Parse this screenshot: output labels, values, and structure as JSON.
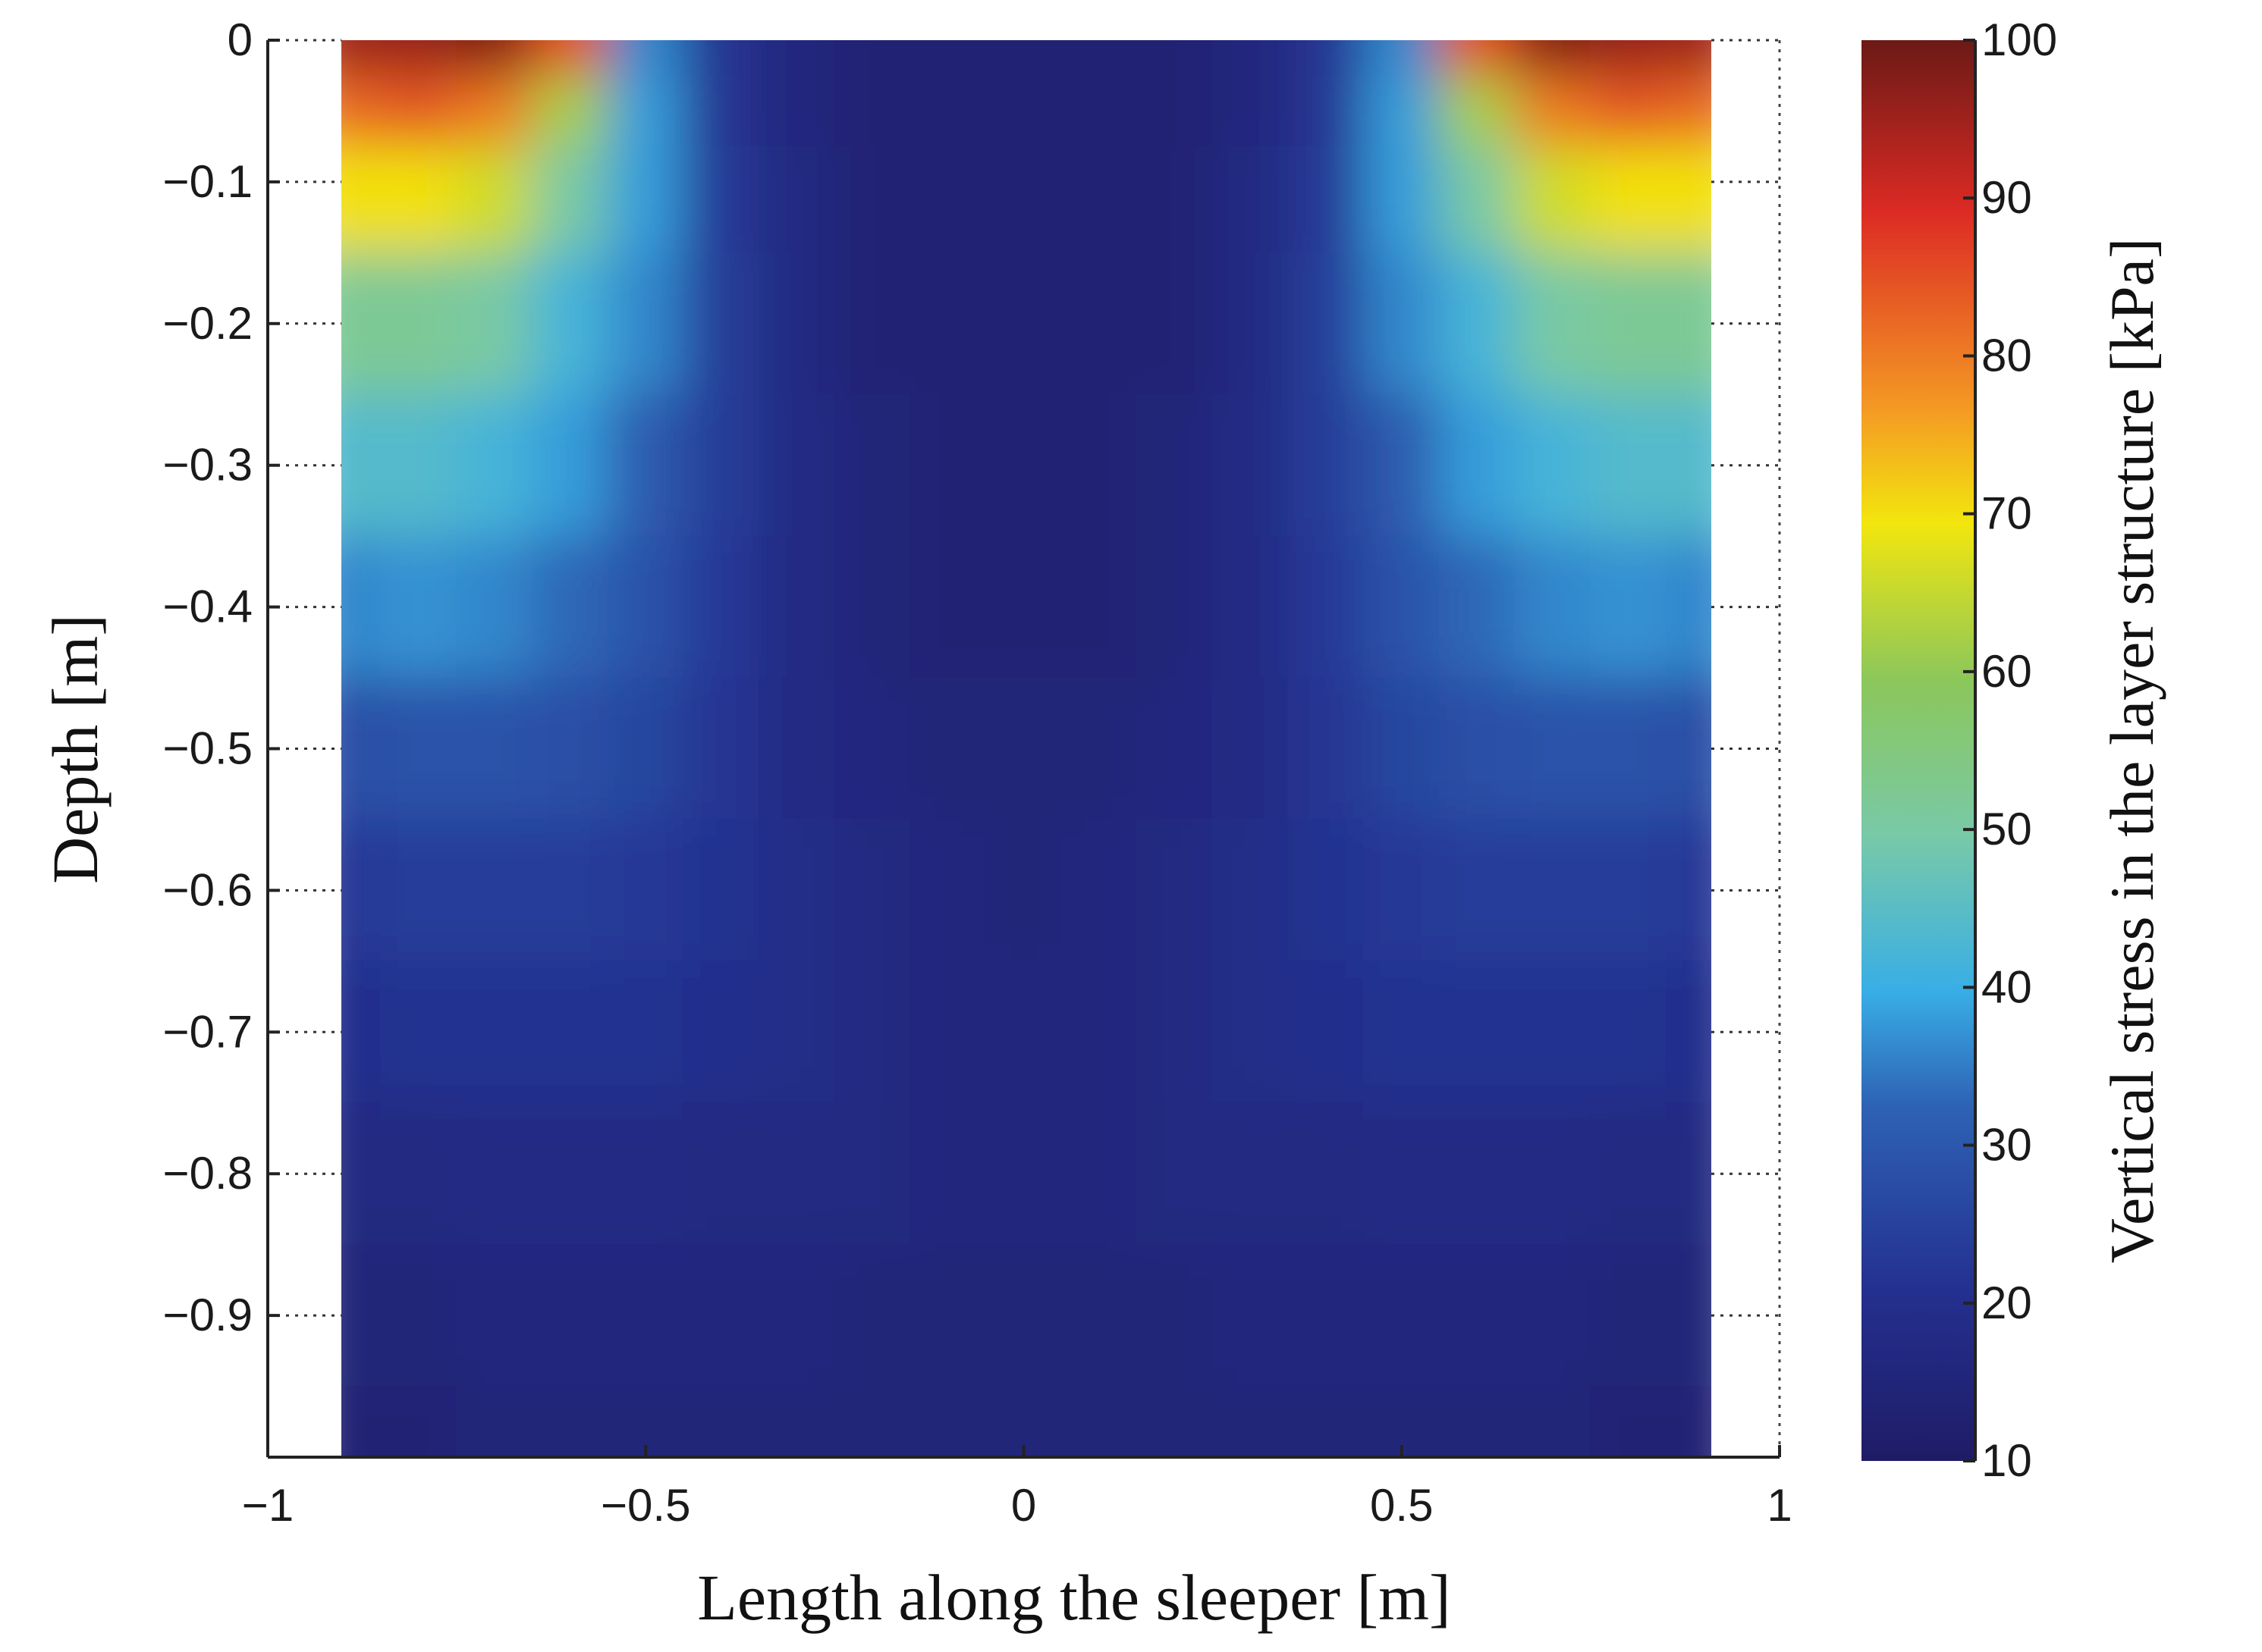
{
  "chart_data": {
    "type": "heatmap",
    "title": "",
    "xlabel": "Length along the sleeper [m]",
    "ylabel": "Depth [m]",
    "colorbar_label": "Vertical stress in the layer structure [kPa]",
    "xlim": [
      -1,
      1
    ],
    "ylim": [
      -1,
      0
    ],
    "data_x_extent": [
      -0.9,
      0.9
    ],
    "x_ticks": [
      {
        "value": -1,
        "label": "−1"
      },
      {
        "value": -0.5,
        "label": "−0.5"
      },
      {
        "value": 0,
        "label": "0"
      },
      {
        "value": 0.5,
        "label": "0.5"
      },
      {
        "value": 1,
        "label": "1"
      }
    ],
    "y_ticks": [
      {
        "value": 0,
        "label": "0"
      },
      {
        "value": -0.1,
        "label": "−0.1"
      },
      {
        "value": -0.2,
        "label": "−0.2"
      },
      {
        "value": -0.3,
        "label": "−0.3"
      },
      {
        "value": -0.4,
        "label": "−0.4"
      },
      {
        "value": -0.5,
        "label": "−0.5"
      },
      {
        "value": -0.6,
        "label": "−0.6"
      },
      {
        "value": -0.7,
        "label": "−0.7"
      },
      {
        "value": -0.8,
        "label": "−0.8"
      },
      {
        "value": -0.9,
        "label": "−0.9"
      }
    ],
    "colorbar": {
      "min": 10,
      "max": 100,
      "colormap": "jet",
      "ticks": [
        {
          "value": 100,
          "label": "100"
        },
        {
          "value": 90,
          "label": "90"
        },
        {
          "value": 80,
          "label": "80"
        },
        {
          "value": 70,
          "label": "70"
        },
        {
          "value": 60,
          "label": "60"
        },
        {
          "value": 50,
          "label": "50"
        },
        {
          "value": 40,
          "label": "40"
        },
        {
          "value": 30,
          "label": "30"
        },
        {
          "value": 20,
          "label": "20"
        },
        {
          "value": 10,
          "label": "10"
        }
      ]
    },
    "grid": false,
    "x_samples": [
      -0.9,
      -0.8,
      -0.7,
      -0.6,
      -0.5,
      -0.4,
      -0.3,
      -0.2,
      -0.1,
      0,
      0.1,
      0.2,
      0.3,
      0.4,
      0.5,
      0.6,
      0.7,
      0.8,
      0.9
    ],
    "depth_samples": [
      0,
      -0.05,
      -0.1,
      -0.2,
      -0.3,
      -0.4,
      -0.5,
      -0.6,
      -0.7,
      -0.8,
      -0.9,
      -1.0
    ],
    "stress_kpa": [
      [
        95,
        96,
        98,
        85,
        36,
        22,
        16,
        14,
        14,
        14,
        14,
        14,
        16,
        22,
        36,
        85,
        98,
        96,
        95
      ],
      [
        82,
        84,
        80,
        62,
        38,
        22,
        16,
        14,
        14,
        14,
        14,
        14,
        16,
        22,
        38,
        62,
        80,
        84,
        82
      ],
      [
        70,
        70,
        66,
        50,
        38,
        23,
        17,
        14,
        14,
        14,
        14,
        14,
        17,
        23,
        38,
        50,
        66,
        70,
        70
      ],
      [
        52,
        52,
        50,
        42,
        36,
        24,
        17,
        14,
        14,
        14,
        14,
        14,
        17,
        24,
        36,
        42,
        50,
        52,
        52
      ],
      [
        44,
        44,
        42,
        38,
        31,
        24,
        18,
        15,
        14,
        14,
        14,
        15,
        18,
        24,
        31,
        38,
        42,
        44,
        44
      ],
      [
        36,
        37,
        36,
        33,
        29,
        23,
        18,
        15,
        14,
        14,
        14,
        15,
        18,
        23,
        29,
        33,
        36,
        37,
        36
      ],
      [
        28,
        29,
        29,
        28,
        26,
        22,
        18,
        16,
        15,
        15,
        15,
        16,
        18,
        22,
        26,
        28,
        29,
        29,
        28
      ],
      [
        23,
        24,
        24,
        24,
        23,
        21,
        19,
        17,
        16,
        15,
        16,
        17,
        19,
        21,
        23,
        24,
        24,
        24,
        23
      ],
      [
        20,
        21,
        21,
        21,
        21,
        20,
        19,
        17,
        16,
        16,
        16,
        17,
        19,
        20,
        21,
        21,
        21,
        21,
        20
      ],
      [
        17,
        17,
        18,
        18,
        18,
        17,
        17,
        17,
        16,
        16,
        16,
        17,
        17,
        17,
        18,
        18,
        18,
        17,
        17
      ],
      [
        15,
        15,
        16,
        16,
        16,
        16,
        16,
        15,
        15,
        15,
        15,
        15,
        16,
        16,
        16,
        16,
        16,
        15,
        15
      ],
      [
        14,
        14,
        15,
        15,
        15,
        15,
        15,
        15,
        15,
        15,
        15,
        15,
        15,
        15,
        15,
        15,
        15,
        14,
        14
      ]
    ]
  }
}
